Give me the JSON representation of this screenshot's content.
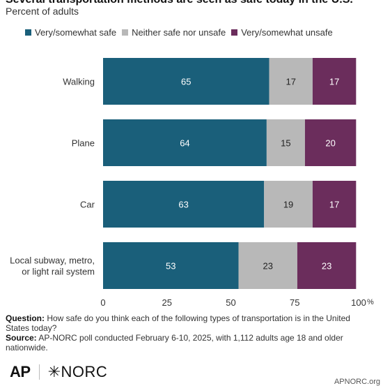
{
  "header": {
    "title": "Several transportation methods are seen as safe today in the U.S.",
    "subtitle": "Percent of adults"
  },
  "footer": {
    "question_label": "Question:",
    "question_text": "How safe do you think each of the following types of transportation is in the United States today?",
    "source_label": "Source:",
    "source_text": "AP-NORC poll conducted February 6-10, 2025, with 1,112 adults age 18 and older nationwide.",
    "logo_ap": "AP",
    "logo_norc": "NORC",
    "url": "APNORC.org"
  },
  "colors": {
    "safe": "#1a5f7a",
    "neither": "#b8b8b8",
    "unsafe": "#6b2d5c"
  },
  "chart_data": {
    "type": "bar",
    "orientation": "horizontal",
    "stacked": true,
    "categories": [
      "Walking",
      "Plane",
      "Car",
      "Local subway, metro, or light rail system"
    ],
    "series": [
      {
        "name": "Very/somewhat safe",
        "values": [
          65,
          64,
          63,
          53
        ]
      },
      {
        "name": "Neither safe nor unsafe",
        "values": [
          17,
          15,
          19,
          23
        ]
      },
      {
        "name": "Very/somewhat unsafe",
        "values": [
          17,
          20,
          17,
          23
        ]
      }
    ],
    "xlim": [
      0,
      100
    ],
    "xticks": [
      0,
      25,
      50,
      75,
      100
    ],
    "x_unit": "%",
    "legend_position": "top",
    "grid": false
  }
}
